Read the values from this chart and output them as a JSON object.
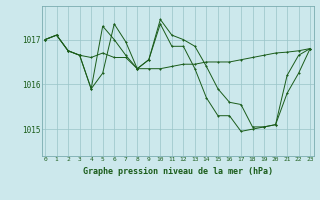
{
  "title": "Graphe pression niveau de la mer (hPa)",
  "background_color": "#cce8ec",
  "plot_bg_color": "#cce8ec",
  "line_color": "#1a5c1a",
  "grid_color": "#99c4c8",
  "yticks": [
    1015,
    1016,
    1017
  ],
  "ylim": [
    1014.4,
    1017.75
  ],
  "xlim": [
    -0.3,
    23.3
  ],
  "series1": [
    1017.0,
    1017.1,
    1016.75,
    1016.65,
    1016.6,
    1016.7,
    1016.6,
    1016.6,
    1016.35,
    1016.35,
    1016.35,
    1016.4,
    1016.45,
    1016.45,
    1016.5,
    1016.5,
    1016.5,
    1016.55,
    1016.6,
    1016.65,
    1016.7,
    1016.72,
    1016.75,
    1016.8
  ],
  "series2": [
    1017.0,
    1017.1,
    1016.75,
    1016.65,
    1015.9,
    1016.25,
    1017.35,
    1016.95,
    1016.35,
    1016.55,
    1017.45,
    1017.1,
    1017.0,
    1016.85,
    1016.4,
    1015.9,
    1015.6,
    1015.55,
    1015.05,
    1015.05,
    1015.1,
    1015.8,
    1016.25,
    1016.8
  ],
  "series3": [
    1017.0,
    1017.1,
    1016.75,
    1016.65,
    1015.9,
    1017.3,
    1017.0,
    1016.65,
    1016.35,
    1016.55,
    1017.35,
    1016.85,
    1016.85,
    1016.35,
    1015.7,
    1015.3,
    1015.3,
    1014.95,
    1015.0,
    1015.05,
    1015.1,
    1016.2,
    1016.65,
    1016.8
  ]
}
